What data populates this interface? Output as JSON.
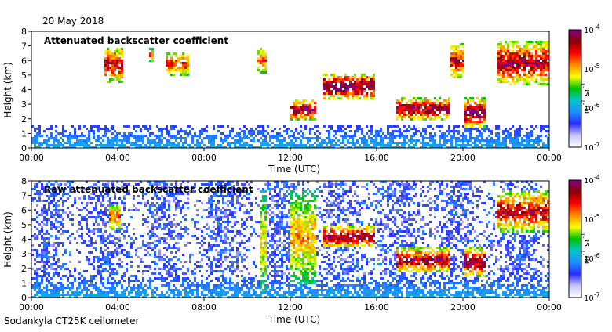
{
  "date_label": "20 May 2018",
  "footer_label": "Sodankyla CT25K ceilometer",
  "chart_data": [
    {
      "type": "heatmap",
      "title": "Attenuated backscatter coefficient",
      "xlabel": "Time (UTC)",
      "ylabel": "Height (km)",
      "x_ticks": [
        "00:00",
        "04:00",
        "08:00",
        "12:00",
        "16:00",
        "20:00",
        "00:00"
      ],
      "x_tick_hours": [
        0,
        4,
        8,
        12,
        16,
        20,
        24
      ],
      "xlim_hours": [
        0,
        24
      ],
      "y_ticks": [
        "0",
        "1",
        "2",
        "3",
        "4",
        "5",
        "6",
        "7",
        "8"
      ],
      "ylim_km": [
        0,
        8
      ],
      "colorbar": {
        "scale": "log",
        "range": [
          1e-07,
          0.0001
        ],
        "tick_labels": [
          {
            "base": "10",
            "exp": "-4"
          },
          {
            "base": "10",
            "exp": "-5"
          },
          {
            "base": "10",
            "exp": "-6"
          },
          {
            "base": "10",
            "exp": "-7"
          }
        ],
        "label": "m",
        "label_exp1": "-1",
        "label_mid": " sr",
        "label_exp2": "-1",
        "colors": [
          "#ffffff",
          "#c6c6f5",
          "#2b2bff",
          "#1e90ff",
          "#00c8c8",
          "#00c000",
          "#ffff00",
          "#ff8c00",
          "#ff0000",
          "#8b0000",
          "#800080"
        ]
      },
      "features": [
        {
          "start_h": 3.3,
          "end_h": 4.2,
          "base_km": 4.6,
          "top_km": 7.0,
          "peak": 0.75
        },
        {
          "start_h": 5.4,
          "end_h": 5.6,
          "base_km": 6.0,
          "top_km": 6.9,
          "peak": 0.6
        },
        {
          "start_h": 6.2,
          "end_h": 7.3,
          "base_km": 5.0,
          "top_km": 6.6,
          "peak": 0.65
        },
        {
          "start_h": 10.4,
          "end_h": 10.9,
          "base_km": 5.2,
          "top_km": 7.0,
          "peak": 0.55
        },
        {
          "start_h": 12.0,
          "end_h": 13.2,
          "base_km": 2.0,
          "top_km": 3.4,
          "peak": 0.85
        },
        {
          "start_h": 13.5,
          "end_h": 15.9,
          "base_km": 3.4,
          "top_km": 5.2,
          "peak": 0.9
        },
        {
          "start_h": 16.8,
          "end_h": 19.4,
          "base_km": 2.0,
          "top_km": 3.5,
          "peak": 0.85
        },
        {
          "start_h": 20.0,
          "end_h": 21.0,
          "base_km": 1.5,
          "top_km": 3.5,
          "peak": 0.9
        },
        {
          "start_h": 19.4,
          "end_h": 20.0,
          "base_km": 4.8,
          "top_km": 7.3,
          "peak": 0.7
        },
        {
          "start_h": 21.5,
          "end_h": 23.9,
          "base_km": 4.4,
          "top_km": 7.4,
          "peak": 0.8
        }
      ]
    },
    {
      "type": "heatmap",
      "title": "Raw attenuated backscatter coefficient",
      "xlabel": "Time (UTC)",
      "ylabel": "Height (km)",
      "x_ticks": [
        "00:00",
        "04:00",
        "08:00",
        "12:00",
        "16:00",
        "20:00",
        "00:00"
      ],
      "x_tick_hours": [
        0,
        4,
        8,
        12,
        16,
        20,
        24
      ],
      "xlim_hours": [
        0,
        24
      ],
      "y_ticks": [
        "0",
        "1",
        "2",
        "3",
        "4",
        "5",
        "6",
        "7",
        "8"
      ],
      "ylim_km": [
        0,
        8
      ],
      "colorbar": {
        "scale": "log",
        "range": [
          1e-07,
          0.0001
        ],
        "tick_labels": [
          {
            "base": "10",
            "exp": "-4"
          },
          {
            "base": "10",
            "exp": "-5"
          },
          {
            "base": "10",
            "exp": "-6"
          },
          {
            "base": "10",
            "exp": "-7"
          }
        ],
        "label": "m",
        "label_exp1": "-1",
        "label_mid": " sr",
        "label_exp2": "-1",
        "colors": [
          "#ffffff",
          "#c6c6f5",
          "#2b2bff",
          "#1e90ff",
          "#00c8c8",
          "#00c000",
          "#ffff00",
          "#ff8c00",
          "#ff0000",
          "#8b0000",
          "#800080"
        ]
      },
      "features": [
        {
          "start_h": 3.5,
          "end_h": 4.1,
          "base_km": 4.7,
          "top_km": 6.5,
          "peak": 0.6
        },
        {
          "start_h": 10.5,
          "end_h": 10.8,
          "base_km": 0.5,
          "top_km": 7.4,
          "peak": 0.45
        },
        {
          "start_h": 12.0,
          "end_h": 13.2,
          "base_km": 1.0,
          "top_km": 7.4,
          "peak": 0.5
        },
        {
          "start_h": 13.5,
          "end_h": 15.9,
          "base_km": 3.5,
          "top_km": 5.0,
          "peak": 0.85
        },
        {
          "start_h": 16.8,
          "end_h": 19.4,
          "base_km": 1.8,
          "top_km": 3.5,
          "peak": 0.8
        },
        {
          "start_h": 20.0,
          "end_h": 21.0,
          "base_km": 1.5,
          "top_km": 3.5,
          "peak": 0.85
        },
        {
          "start_h": 21.5,
          "end_h": 23.9,
          "base_km": 4.6,
          "top_km": 7.4,
          "peak": 0.75
        }
      ]
    }
  ]
}
